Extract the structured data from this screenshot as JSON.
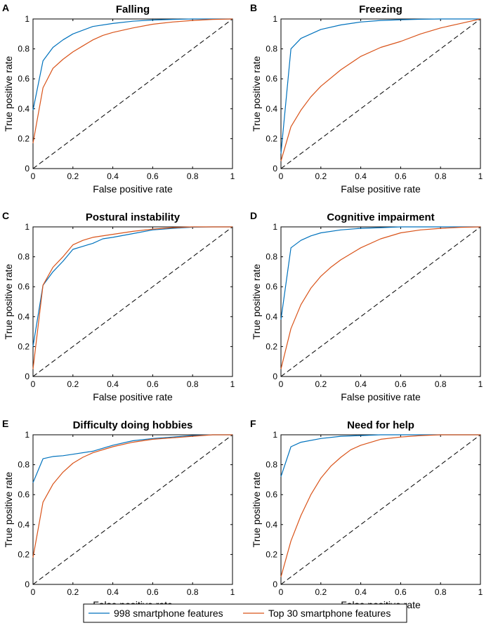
{
  "colors": {
    "series_blue": "#0072BD",
    "series_orange": "#D95319",
    "diagonal": "#000000",
    "axis": "#000000",
    "background": "#ffffff"
  },
  "legend": {
    "items": [
      {
        "label": "998 smartphone features",
        "color": "#0072BD"
      },
      {
        "label": "Top 30 smartphone features",
        "color": "#D95319"
      }
    ]
  },
  "chart_data": [
    {
      "panel": "A",
      "type": "line",
      "title": "Falling",
      "xlabel": "False positive rate",
      "ylabel": "True positive rate",
      "xlim": [
        0,
        1
      ],
      "ylim": [
        0,
        1
      ],
      "xticks": [
        "0",
        "0.2",
        "0.4",
        "0.6",
        "0.8",
        "1"
      ],
      "yticks": [
        "0",
        "0.2",
        "0.4",
        "0.6",
        "0.8",
        "1"
      ],
      "diagonal": true,
      "series": [
        {
          "name": "998 smartphone features",
          "x": [
            0,
            0.05,
            0.1,
            0.15,
            0.2,
            0.3,
            0.4,
            0.5,
            0.6,
            0.7,
            0.8,
            0.9,
            1.0
          ],
          "y": [
            0.39,
            0.72,
            0.81,
            0.86,
            0.9,
            0.95,
            0.97,
            0.985,
            0.993,
            0.997,
            1.0,
            1.0,
            1.0
          ]
        },
        {
          "name": "Top 30 smartphone features",
          "x": [
            0,
            0.05,
            0.1,
            0.15,
            0.2,
            0.25,
            0.3,
            0.35,
            0.4,
            0.5,
            0.6,
            0.7,
            0.8,
            0.9,
            1.0
          ],
          "y": [
            0.17,
            0.54,
            0.67,
            0.73,
            0.78,
            0.82,
            0.86,
            0.89,
            0.91,
            0.94,
            0.965,
            0.98,
            0.99,
            0.997,
            1.0
          ]
        }
      ]
    },
    {
      "panel": "B",
      "type": "line",
      "title": "Freezing",
      "xlabel": "False positive rate",
      "ylabel": "True positive rate",
      "xlim": [
        0,
        1
      ],
      "ylim": [
        0,
        1
      ],
      "xticks": [
        "0",
        "0.2",
        "0.4",
        "0.6",
        "0.8",
        "1"
      ],
      "yticks": [
        "0",
        "0.2",
        "0.4",
        "0.6",
        "0.8",
        "1"
      ],
      "diagonal": true,
      "series": [
        {
          "name": "998 smartphone features",
          "x": [
            0,
            0.05,
            0.1,
            0.2,
            0.3,
            0.4,
            0.5,
            0.6,
            0.7,
            0.8,
            0.9,
            1.0
          ],
          "y": [
            0.1,
            0.8,
            0.87,
            0.93,
            0.96,
            0.98,
            0.99,
            0.995,
            0.998,
            1.0,
            1.0,
            1.0
          ]
        },
        {
          "name": "Top 30 smartphone features",
          "x": [
            0,
            0.05,
            0.1,
            0.15,
            0.2,
            0.3,
            0.4,
            0.5,
            0.6,
            0.7,
            0.8,
            0.9,
            1.0
          ],
          "y": [
            0.05,
            0.28,
            0.39,
            0.48,
            0.55,
            0.66,
            0.75,
            0.81,
            0.85,
            0.9,
            0.94,
            0.97,
            1.0
          ]
        }
      ]
    },
    {
      "panel": "C",
      "type": "line",
      "title": "Postural instability",
      "xlabel": "False positive rate",
      "ylabel": "True positive rate",
      "xlim": [
        0,
        1
      ],
      "ylim": [
        0,
        1
      ],
      "xticks": [
        "0",
        "0.2",
        "0.4",
        "0.6",
        "0.8",
        "1"
      ],
      "yticks": [
        "0",
        "0.2",
        "0.4",
        "0.6",
        "0.8",
        "1"
      ],
      "diagonal": true,
      "series": [
        {
          "name": "998 smartphone features",
          "x": [
            0,
            0.05,
            0.1,
            0.15,
            0.2,
            0.25,
            0.3,
            0.35,
            0.4,
            0.5,
            0.6,
            0.7,
            0.8,
            0.9,
            1.0
          ],
          "y": [
            0.2,
            0.61,
            0.7,
            0.77,
            0.85,
            0.87,
            0.89,
            0.92,
            0.93,
            0.955,
            0.98,
            0.99,
            0.998,
            1.0,
            1.0
          ]
        },
        {
          "name": "Top 30 smartphone features",
          "x": [
            0,
            0.05,
            0.1,
            0.15,
            0.2,
            0.25,
            0.3,
            0.4,
            0.5,
            0.6,
            0.7,
            0.8,
            0.9,
            1.0
          ],
          "y": [
            0.05,
            0.61,
            0.73,
            0.8,
            0.88,
            0.91,
            0.93,
            0.95,
            0.97,
            0.985,
            0.995,
            1.0,
            1.0,
            1.0
          ]
        }
      ]
    },
    {
      "panel": "D",
      "type": "line",
      "title": "Cognitive impairment",
      "xlabel": "False positive rate",
      "ylabel": "True positive rate",
      "xlim": [
        0,
        1
      ],
      "ylim": [
        0,
        1
      ],
      "xticks": [
        "0",
        "0.2",
        "0.4",
        "0.6",
        "0.8",
        "1"
      ],
      "yticks": [
        "0",
        "0.2",
        "0.4",
        "0.6",
        "0.8",
        "1"
      ],
      "diagonal": true,
      "series": [
        {
          "name": "998 smartphone features",
          "x": [
            0,
            0.05,
            0.1,
            0.15,
            0.2,
            0.3,
            0.4,
            0.5,
            0.6,
            0.7,
            0.8,
            0.9,
            1.0
          ],
          "y": [
            0.38,
            0.86,
            0.91,
            0.94,
            0.96,
            0.98,
            0.99,
            0.995,
            1.0,
            1.0,
            1.0,
            1.0,
            1.0
          ]
        },
        {
          "name": "Top 30 smartphone features",
          "x": [
            0,
            0.05,
            0.1,
            0.15,
            0.2,
            0.25,
            0.3,
            0.4,
            0.5,
            0.6,
            0.7,
            0.8,
            0.9,
            1.0
          ],
          "y": [
            0.05,
            0.32,
            0.48,
            0.59,
            0.67,
            0.73,
            0.78,
            0.86,
            0.92,
            0.96,
            0.98,
            0.99,
            0.997,
            1.0
          ]
        }
      ]
    },
    {
      "panel": "E",
      "type": "line",
      "title": "Difficulty doing hobbies",
      "xlabel": "False positive rate",
      "ylabel": "True positive rate",
      "xlim": [
        0,
        1
      ],
      "ylim": [
        0,
        1
      ],
      "xticks": [
        "0",
        "0.2",
        "0.4",
        "0.6",
        "0.8",
        "1"
      ],
      "yticks": [
        "0",
        "0.2",
        "0.4",
        "0.6",
        "0.8",
        "1"
      ],
      "diagonal": true,
      "series": [
        {
          "name": "998 smartphone features",
          "x": [
            0,
            0.05,
            0.1,
            0.15,
            0.2,
            0.3,
            0.4,
            0.5,
            0.6,
            0.7,
            0.8,
            0.9,
            1.0
          ],
          "y": [
            0.68,
            0.84,
            0.855,
            0.86,
            0.87,
            0.89,
            0.93,
            0.96,
            0.975,
            0.985,
            0.995,
            1.0,
            1.0
          ]
        },
        {
          "name": "Top 30 smartphone features",
          "x": [
            0,
            0.05,
            0.1,
            0.15,
            0.2,
            0.25,
            0.3,
            0.4,
            0.5,
            0.6,
            0.7,
            0.8,
            0.9,
            1.0
          ],
          "y": [
            0.18,
            0.55,
            0.67,
            0.75,
            0.81,
            0.85,
            0.88,
            0.92,
            0.95,
            0.97,
            0.98,
            0.99,
            1.0,
            1.0
          ]
        }
      ]
    },
    {
      "panel": "F",
      "type": "line",
      "title": "Need for help",
      "xlabel": "False positive rate",
      "ylabel": "True positive rate",
      "xlim": [
        0,
        1
      ],
      "ylim": [
        0,
        1
      ],
      "xticks": [
        "0",
        "0.2",
        "0.4",
        "0.6",
        "0.8",
        "1"
      ],
      "yticks": [
        "0",
        "0.2",
        "0.4",
        "0.6",
        "0.8",
        "1"
      ],
      "diagonal": true,
      "series": [
        {
          "name": "998 smartphone features",
          "x": [
            0,
            0.05,
            0.1,
            0.2,
            0.3,
            0.4,
            0.5,
            0.6,
            0.7,
            0.8,
            0.9,
            1.0
          ],
          "y": [
            0.72,
            0.92,
            0.95,
            0.975,
            0.99,
            0.995,
            1.0,
            1.0,
            1.0,
            1.0,
            1.0,
            1.0
          ]
        },
        {
          "name": "Top 30 smartphone features",
          "x": [
            0,
            0.05,
            0.1,
            0.15,
            0.2,
            0.25,
            0.3,
            0.35,
            0.4,
            0.5,
            0.6,
            0.7,
            0.8,
            0.9,
            1.0
          ],
          "y": [
            0.05,
            0.29,
            0.46,
            0.6,
            0.71,
            0.79,
            0.85,
            0.9,
            0.93,
            0.97,
            0.985,
            0.995,
            1.0,
            1.0,
            1.0
          ]
        }
      ]
    }
  ]
}
